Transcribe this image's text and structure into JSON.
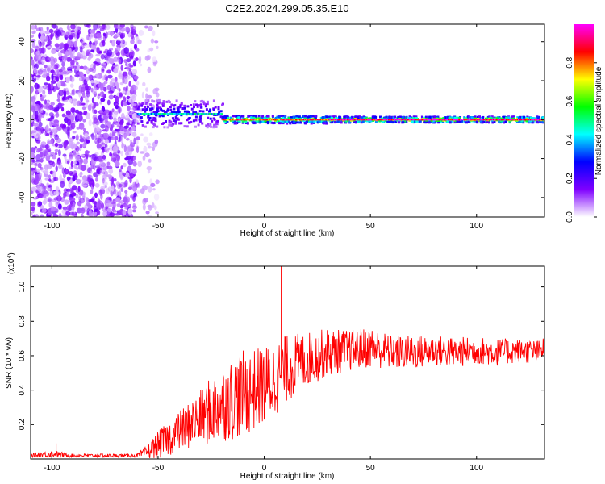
{
  "title": "C2E2.2024.299.05.35.E10",
  "chart_data": [
    {
      "type": "heatmap",
      "xlabel": "Height of straight line (km)",
      "ylabel": "Frequency (Hz)",
      "xlim": [
        -110,
        132
      ],
      "ylim": [
        -50,
        49
      ],
      "xticks": [
        -100,
        -50,
        0,
        50,
        100
      ],
      "yticks": [
        -40,
        -20,
        0,
        20,
        40
      ],
      "grid": false,
      "colorbar": {
        "label": "Normalized spectral amplitude",
        "range": [
          0,
          1
        ],
        "ticks": [
          0.0,
          0.2,
          0.4,
          0.6,
          0.8
        ],
        "tick_labels": [
          "0.0",
          "0.2",
          "0.4",
          "0.6",
          "0.8"
        ],
        "colormap": [
          "#ffffff",
          "#7f00ff",
          "#0000ff",
          "#00ffff",
          "#00ff00",
          "#ffff00",
          "#ff0000",
          "#ff00ff"
        ]
      },
      "regions": [
        {
          "x": [
            -110,
            -60
          ],
          "freq_range": [
            -50,
            49
          ],
          "amplitude": 0.1,
          "pattern": "scattered noise"
        },
        {
          "x": [
            -60,
            -50
          ],
          "freq_range": [
            -50,
            49
          ],
          "amplitude": 0.05,
          "pattern": "sparse noise"
        },
        {
          "x": [
            -60,
            -20
          ],
          "freq_center": 3,
          "freq_halfwidth": 7,
          "amplitude": 0.3,
          "pattern": "broad band"
        },
        {
          "x": [
            -20,
            30
          ],
          "freq_center": 0,
          "freq_halfwidth": 2,
          "amplitude": 0.7,
          "pattern": "narrow band"
        },
        {
          "x": [
            30,
            132
          ],
          "freq_center": 0,
          "freq_halfwidth": 1.5,
          "amplitude": 0.8,
          "pattern": "narrow band"
        }
      ]
    },
    {
      "type": "line",
      "xlabel": "Height of straight line (km)",
      "ylabel": "SNR (10 * v/v)",
      "y_multiplier": "(x10",
      "y_multiplier_exp": "4",
      "y_multiplier_close": ")",
      "xlim": [
        -110,
        132
      ],
      "ylim": [
        0,
        1.12
      ],
      "xticks": [
        -100,
        -50,
        0,
        50,
        100
      ],
      "yticks": [
        0.2,
        0.4,
        0.6,
        0.8,
        1.0
      ],
      "grid": false,
      "color": "#ff0000",
      "series": [
        {
          "x": [
            -110,
            -100,
            -90,
            -80,
            -70,
            -60,
            -55,
            -50,
            -45,
            -40,
            -35,
            -30,
            -25,
            -20,
            -15,
            -10,
            -5,
            0,
            5,
            10,
            15,
            20,
            25,
            30,
            40,
            50,
            60,
            70,
            80,
            90,
            100,
            110,
            120,
            130,
            132
          ],
          "y": [
            0.02,
            0.03,
            0.02,
            0.02,
            0.02,
            0.02,
            0.04,
            0.08,
            0.12,
            0.16,
            0.2,
            0.24,
            0.28,
            0.32,
            0.35,
            0.38,
            0.4,
            0.42,
            0.46,
            0.52,
            0.55,
            0.58,
            0.6,
            0.62,
            0.63,
            0.65,
            0.62,
            0.62,
            0.63,
            0.62,
            0.63,
            0.62,
            0.63,
            0.62,
            0.66
          ],
          "fluctuation": [
            0.01,
            0.02,
            0.01,
            0.01,
            0.01,
            0.01,
            0.04,
            0.08,
            0.1,
            0.12,
            0.14,
            0.16,
            0.2,
            0.22,
            0.24,
            0.25,
            0.24,
            0.24,
            0.22,
            0.2,
            0.18,
            0.16,
            0.15,
            0.14,
            0.12,
            0.12,
            0.1,
            0.1,
            0.09,
            0.09,
            0.08,
            0.08,
            0.07,
            0.07,
            0.06
          ]
        }
      ],
      "annotations": [
        {
          "x": -98,
          "y": 0.09,
          "label": ""
        },
        {
          "x": 8,
          "y": 1.12,
          "label": ""
        }
      ]
    }
  ]
}
